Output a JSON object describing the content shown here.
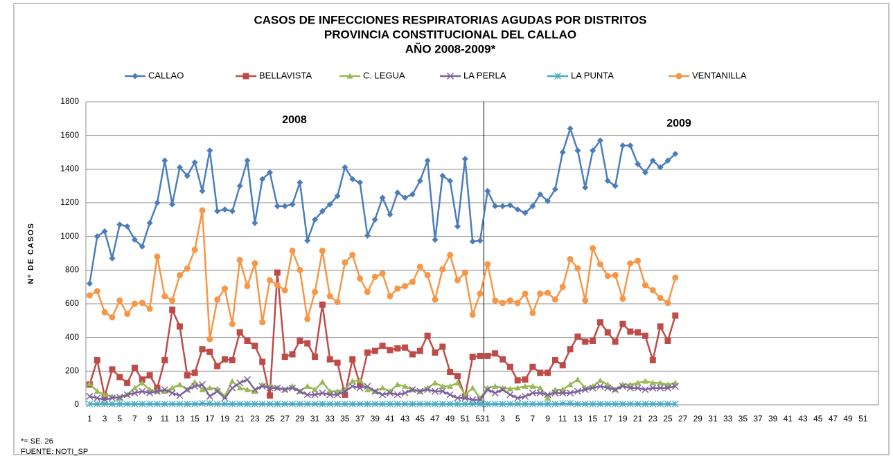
{
  "chart_data": {
    "type": "line",
    "title": [
      "CASOS DE INFECCIONES RESPIRATORIAS AGUDAS POR DISTRITOS",
      "PROVINCIA CONSTITUCIONAL DEL CALLAO",
      "AÑO 2008-2009*"
    ],
    "y_label": "Nº DE CASOS",
    "annotations": [
      "2008",
      "2009"
    ],
    "footnotes": [
      "*= SE. 26",
      "FUENTE: NOTI_SP"
    ],
    "categories": [
      "1",
      null,
      "3",
      null,
      "5",
      null,
      "7",
      null,
      "9",
      null,
      "11",
      null,
      "13",
      null,
      "15",
      null,
      "17",
      null,
      "19",
      null,
      "21",
      null,
      "23",
      null,
      "25",
      null,
      "27",
      null,
      "29",
      null,
      "31",
      null,
      "33",
      null,
      "35",
      null,
      "37",
      null,
      "39",
      null,
      "41",
      null,
      "43",
      null,
      "45",
      null,
      "47",
      null,
      "49",
      null,
      "51",
      null,
      "53",
      "1",
      null,
      "3",
      null,
      "5",
      null,
      "7",
      null,
      "9",
      null,
      "11",
      null,
      "13",
      null,
      "15",
      null,
      "17",
      null,
      "19",
      null,
      "21",
      null,
      "23",
      null,
      "25",
      null,
      "27",
      null,
      "29",
      null,
      "31",
      null,
      "33",
      null,
      "35",
      null,
      "37",
      null,
      "39",
      null,
      "41",
      null,
      "43",
      null,
      "45",
      null,
      "47",
      null,
      "49",
      null,
      "51",
      null
    ],
    "ylim": [
      0,
      1800
    ],
    "yticks": [
      0,
      200,
      400,
      600,
      800,
      1000,
      1200,
      1400,
      1600,
      1800
    ],
    "grid": true,
    "legend": "top",
    "series": [
      {
        "name": "CALLAO",
        "color": "#4a7ebb",
        "marker": "diamond",
        "values": [
          720,
          1000,
          1030,
          870,
          1070,
          1060,
          980,
          940,
          1080,
          1200,
          1450,
          1190,
          1410,
          1360,
          1440,
          1270,
          1510,
          1150,
          1160,
          1150,
          1300,
          1450,
          1080,
          1340,
          1380,
          1180,
          1180,
          1190,
          1320,
          975,
          1100,
          1150,
          1190,
          1240,
          1410,
          1340,
          1320,
          1005,
          1100,
          1230,
          1130,
          1260,
          1230,
          1250,
          1330,
          1450,
          980,
          1360,
          1330,
          1060,
          1460,
          970,
          975,
          1270,
          1180,
          1180,
          1185,
          1160,
          1140,
          1180,
          1250,
          1210,
          1280,
          1500,
          1640,
          1510,
          1290,
          1510,
          1570,
          1330,
          1300,
          1540,
          1540,
          1430,
          1380,
          1450,
          1410,
          1450,
          1490,
          null,
          null,
          null,
          null,
          null,
          null,
          null,
          null,
          null,
          null,
          null,
          null,
          null,
          null,
          null,
          null,
          null,
          null,
          null,
          null,
          null,
          null,
          null,
          null,
          null,
          null
        ]
      },
      {
        "name": "BELLAVISTA",
        "color": "#be4b48",
        "marker": "square",
        "values": [
          120,
          265,
          50,
          210,
          165,
          130,
          220,
          150,
          175,
          100,
          265,
          565,
          465,
          175,
          190,
          330,
          315,
          230,
          270,
          265,
          430,
          380,
          350,
          255,
          55,
          785,
          285,
          300,
          380,
          365,
          285,
          595,
          270,
          250,
          60,
          270,
          120,
          310,
          320,
          350,
          325,
          335,
          340,
          300,
          320,
          410,
          310,
          345,
          195,
          170,
          50,
          285,
          290,
          290,
          305,
          270,
          225,
          145,
          150,
          225,
          190,
          190,
          265,
          235,
          330,
          405,
          375,
          380,
          490,
          430,
          375,
          480,
          435,
          430,
          410,
          265,
          465,
          380,
          530,
          null,
          null,
          null,
          null,
          null,
          null,
          null,
          null,
          null,
          null,
          null,
          null,
          null,
          null,
          null,
          null,
          null,
          null,
          null,
          null,
          null,
          null,
          null,
          null,
          null,
          null
        ]
      },
      {
        "name": "C. LEGUA",
        "color": "#98b954",
        "marker": "triangle",
        "values": [
          125,
          80,
          60,
          50,
          40,
          60,
          100,
          130,
          90,
          80,
          80,
          100,
          120,
          90,
          135,
          90,
          100,
          95,
          50,
          140,
          100,
          90,
          80,
          120,
          110,
          100,
          90,
          110,
          80,
          110,
          90,
          135,
          80,
          80,
          90,
          140,
          145,
          90,
          80,
          100,
          80,
          120,
          110,
          90,
          80,
          100,
          130,
          110,
          110,
          130,
          60,
          100,
          40,
          100,
          110,
          100,
          95,
          100,
          110,
          110,
          100,
          40,
          90,
          90,
          120,
          150,
          100,
          110,
          145,
          120,
          90,
          120,
          120,
          130,
          140,
          130,
          130,
          120,
          130,
          null,
          null,
          null,
          null,
          null,
          null,
          null,
          null,
          null,
          null,
          null,
          null,
          null,
          null,
          null,
          null,
          null,
          null,
          null,
          null,
          null,
          null,
          null,
          null,
          null,
          null
        ]
      },
      {
        "name": "LA PERLA",
        "color": "#7d60a0",
        "marker": "x",
        "values": [
          50,
          40,
          30,
          40,
          45,
          60,
          70,
          80,
          70,
          80,
          90,
          70,
          55,
          90,
          110,
          120,
          50,
          80,
          40,
          100,
          130,
          150,
          90,
          110,
          100,
          100,
          90,
          100,
          80,
          60,
          60,
          70,
          60,
          60,
          80,
          110,
          100,
          110,
          80,
          60,
          70,
          60,
          70,
          90,
          80,
          90,
          80,
          80,
          60,
          40,
          40,
          30,
          30,
          90,
          70,
          90,
          60,
          40,
          50,
          70,
          70,
          60,
          70,
          70,
          70,
          80,
          90,
          100,
          110,
          100,
          90,
          110,
          100,
          100,
          90,
          100,
          100,
          100,
          110,
          null,
          null,
          null,
          null,
          null,
          null,
          null,
          null,
          null,
          null,
          null,
          null,
          null,
          null,
          null,
          null,
          null,
          null,
          null,
          null,
          null,
          null,
          null,
          null,
          null,
          null
        ]
      },
      {
        "name": "LA PUNTA",
        "color": "#46aac5",
        "marker": "star",
        "values": [
          5,
          5,
          5,
          5,
          5,
          5,
          5,
          5,
          5,
          5,
          5,
          5,
          5,
          5,
          5,
          8,
          8,
          5,
          5,
          5,
          5,
          5,
          5,
          5,
          5,
          5,
          5,
          5,
          5,
          5,
          5,
          5,
          5,
          5,
          5,
          5,
          5,
          5,
          5,
          5,
          5,
          5,
          5,
          5,
          5,
          5,
          5,
          5,
          5,
          5,
          5,
          5,
          5,
          5,
          5,
          5,
          5,
          5,
          5,
          5,
          5,
          5,
          5,
          8,
          8,
          5,
          5,
          5,
          5,
          5,
          5,
          5,
          5,
          5,
          5,
          5,
          5,
          5,
          5,
          null,
          null,
          null,
          null,
          null,
          null,
          null,
          null,
          null,
          null,
          null,
          null,
          null,
          null,
          null,
          null,
          null,
          null,
          null,
          null,
          null,
          null,
          null,
          null,
          null,
          null
        ]
      },
      {
        "name": "VENTANILLA",
        "color": "#f79646",
        "marker": "circle",
        "values": [
          650,
          675,
          550,
          520,
          620,
          540,
          600,
          605,
          570,
          880,
          645,
          620,
          770,
          810,
          920,
          1155,
          390,
          625,
          690,
          480,
          860,
          705,
          840,
          490,
          740,
          710,
          680,
          915,
          800,
          510,
          670,
          915,
          645,
          610,
          845,
          890,
          750,
          670,
          760,
          780,
          645,
          690,
          705,
          730,
          820,
          770,
          625,
          805,
          890,
          740,
          785,
          535,
          660,
          835,
          620,
          605,
          620,
          605,
          660,
          545,
          660,
          665,
          625,
          700,
          865,
          810,
          620,
          930,
          835,
          765,
          770,
          630,
          840,
          855,
          710,
          680,
          635,
          605,
          755,
          null,
          null,
          null,
          null,
          null,
          null,
          null,
          null,
          null,
          null,
          null,
          null,
          null,
          null,
          null,
          null,
          null,
          null,
          null,
          null,
          null,
          null,
          null,
          null,
          null,
          null
        ]
      }
    ]
  }
}
